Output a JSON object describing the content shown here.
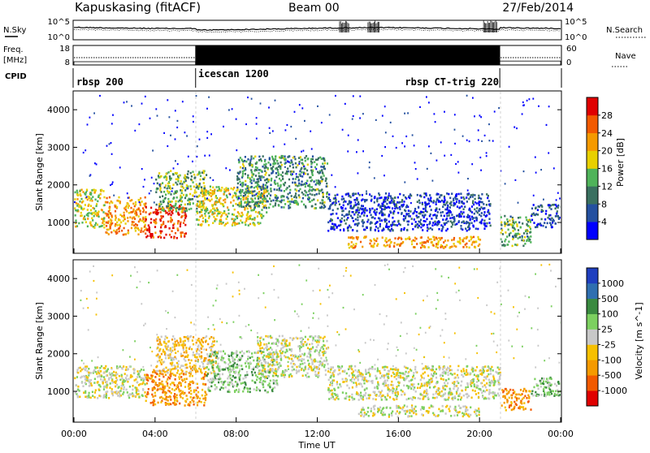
{
  "header": {
    "station": "Kapuskasing (fitACF)",
    "beam": "Beam 00",
    "date": "27/Feb/2014"
  },
  "chart_data": [
    {
      "type": "line",
      "panel": "noise",
      "left_label": "N.Sky",
      "right_label": "N.Search",
      "left_ticks": [
        "10^5",
        "10^0"
      ],
      "right_ticks": [
        "10^5",
        "10^0"
      ]
    },
    {
      "type": "line",
      "panel": "frequency",
      "left_label": "Freq.",
      "left_unit": "[MHz]",
      "right_label": "Nave",
      "left_ticks": [
        "18",
        "8"
      ],
      "right_ticks": [
        "60",
        "0"
      ],
      "frequency_segments": [
        {
          "start_hour": 0.0,
          "end_hour": 6.0,
          "nave": 10
        },
        {
          "start_hour": 6.0,
          "end_hour": 21.0,
          "nave": 60
        },
        {
          "start_hour": 21.0,
          "end_hour": 24.0,
          "nave": 12
        }
      ]
    },
    {
      "type": "table",
      "panel": "cpid",
      "label": "CPID",
      "programs": [
        {
          "name": "rbsp 200",
          "start_hour": 0.0
        },
        {
          "name": "icescan 1200",
          "start_hour": 6.0
        },
        {
          "name": "rbsp CT-trig 220",
          "start_hour": 21.0
        }
      ]
    },
    {
      "type": "heatmap",
      "panel": "power",
      "ylabel": "Slant Range [km]",
      "yticks": [
        1000,
        2000,
        3000,
        4000
      ],
      "ylim": [
        180,
        4500
      ],
      "xlim": [
        0,
        24
      ],
      "colorbar_label": "Power [dB]",
      "colorbar_ticks": [
        4,
        8,
        12,
        16,
        20,
        24,
        28
      ],
      "colorbar_range": [
        0,
        32
      ],
      "colors": [
        "#0000ff",
        "#2450a0",
        "#3a7060",
        "#4fb35a",
        "#e8d000",
        "#f59a00",
        "#f25a00",
        "#e00000"
      ],
      "echo_bands": [
        {
          "start_hour": 0.0,
          "end_hour": 1.5,
          "r_lo": 850,
          "r_hi": 1900,
          "level": 0.55
        },
        {
          "start_hour": 1.5,
          "end_hour": 3.5,
          "r_lo": 700,
          "r_hi": 1700,
          "level": 0.7
        },
        {
          "start_hour": 3.5,
          "end_hour": 5.5,
          "r_lo": 600,
          "r_hi": 1500,
          "level": 0.85
        },
        {
          "start_hour": 4.0,
          "end_hour": 6.5,
          "r_lo": 1300,
          "r_hi": 2400,
          "level": 0.45
        },
        {
          "start_hour": 6.0,
          "end_hour": 9.5,
          "r_lo": 950,
          "r_hi": 2000,
          "level": 0.55
        },
        {
          "start_hour": 8.0,
          "end_hour": 12.5,
          "r_lo": 1400,
          "r_hi": 2800,
          "level": 0.35
        },
        {
          "start_hour": 12.5,
          "end_hour": 20.5,
          "r_lo": 800,
          "r_hi": 1800,
          "level": 0.15
        },
        {
          "start_hour": 13.5,
          "end_hour": 20.0,
          "r_lo": 350,
          "r_hi": 650,
          "level": 0.7
        },
        {
          "start_hour": 21.0,
          "end_hour": 22.5,
          "r_lo": 400,
          "r_hi": 1200,
          "level": 0.4
        },
        {
          "start_hour": 22.5,
          "end_hour": 24.0,
          "r_lo": 900,
          "r_hi": 1500,
          "level": 0.2
        }
      ]
    },
    {
      "type": "heatmap",
      "panel": "velocity",
      "ylabel": "Slant Range [km]",
      "yticks": [
        1000,
        2000,
        3000,
        4000
      ],
      "ylim": [
        180,
        4500
      ],
      "xlim": [
        0,
        24
      ],
      "xlabel": "Time UT",
      "xticks": [
        "00:00",
        "04:00",
        "08:00",
        "12:00",
        "16:00",
        "20:00",
        "00:00"
      ],
      "colorbar_label": "Velocity [m s^-1]",
      "colorbar_ticks": [
        "1000",
        "500",
        "100",
        "25",
        "-25",
        "-100",
        "-500",
        "-1000"
      ],
      "colors": [
        "#1f3fbf",
        "#2f6fb0",
        "#3a8a40",
        "#7cd060",
        "#c8c8c8",
        "#f6c000",
        "#f59a00",
        "#f25a00",
        "#e00000"
      ],
      "echo_bands": [
        {
          "start_hour": 0.0,
          "end_hour": 3.5,
          "r_lo": 850,
          "r_hi": 1700,
          "vcode": 4
        },
        {
          "start_hour": 3.5,
          "end_hour": 6.5,
          "r_lo": 650,
          "r_hi": 1600,
          "vcode": 6
        },
        {
          "start_hour": 4.0,
          "end_hour": 7.0,
          "r_lo": 1500,
          "r_hi": 2500,
          "vcode": 5
        },
        {
          "start_hour": 6.5,
          "end_hour": 10.0,
          "r_lo": 1000,
          "r_hi": 2100,
          "vcode": 3
        },
        {
          "start_hour": 9.0,
          "end_hour": 12.5,
          "r_lo": 1400,
          "r_hi": 2500,
          "vcode": 4
        },
        {
          "start_hour": 12.5,
          "end_hour": 21.0,
          "r_lo": 800,
          "r_hi": 1700,
          "vcode": 4
        },
        {
          "start_hour": 14.0,
          "end_hour": 20.0,
          "r_lo": 350,
          "r_hi": 650,
          "vcode": 4
        },
        {
          "start_hour": 21.0,
          "end_hour": 22.5,
          "r_lo": 500,
          "r_hi": 1100,
          "vcode": 6
        },
        {
          "start_hour": 22.5,
          "end_hour": 24.0,
          "r_lo": 900,
          "r_hi": 1400,
          "vcode": 3
        }
      ]
    }
  ]
}
